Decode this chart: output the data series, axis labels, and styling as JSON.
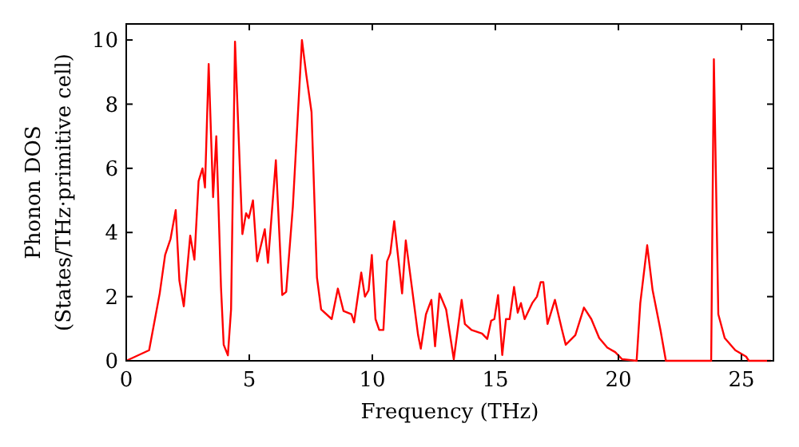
{
  "chart_data": {
    "type": "line",
    "xlabel": "Frequency (THz)",
    "ylabel": "Phonon DOS\n(States/THz·primitive cell)",
    "xlim": [
      0,
      26.3
    ],
    "ylim": [
      0,
      10.5
    ],
    "xticks": [
      0,
      5,
      10,
      15,
      20,
      25
    ],
    "yticks": [
      0,
      2,
      4,
      6,
      8,
      10
    ],
    "grid": false,
    "line_style": "solid",
    "marker": "none",
    "series": [
      {
        "color": "#ff0000",
        "x": [
          0,
          0.93,
          1.36,
          1.58,
          1.8,
          2.01,
          2.16,
          2.34,
          2.6,
          2.77,
          2.94,
          3.1,
          3.2,
          3.35,
          3.53,
          3.66,
          3.85,
          3.96,
          4.13,
          4.26,
          4.42,
          4.72,
          4.87,
          4.98,
          5.15,
          5.32,
          5.63,
          5.76,
          6.08,
          6.34,
          6.5,
          6.77,
          7.14,
          7.32,
          7.53,
          7.75,
          7.92,
          8.35,
          8.6,
          8.83,
          9.15,
          9.26,
          9.55,
          9.7,
          9.85,
          9.98,
          10.13,
          10.28,
          10.45,
          10.6,
          10.73,
          10.89,
          11.21,
          11.36,
          11.64,
          11.86,
          11.97,
          12.18,
          12.4,
          12.55,
          12.73,
          13.0,
          13.31,
          13.63,
          13.76,
          14.03,
          14.46,
          14.67,
          14.83,
          14.96,
          15.11,
          15.28,
          15.43,
          15.58,
          15.76,
          15.91,
          16.04,
          16.19,
          16.5,
          16.69,
          16.84,
          16.95,
          17.12,
          17.42,
          17.71,
          17.86,
          18.25,
          18.6,
          18.9,
          19.22,
          19.55,
          19.87,
          20.15,
          20.74,
          20.89,
          21.17,
          21.39,
          21.71,
          21.93,
          23.77,
          23.88,
          24.06,
          24.32,
          24.75,
          25.19,
          25.3,
          26.2
        ],
        "values": [
          0,
          0.33,
          2.1,
          3.3,
          3.8,
          4.7,
          2.5,
          1.7,
          3.9,
          3.15,
          5.6,
          6.0,
          5.4,
          9.25,
          5.1,
          7.0,
          2.3,
          0.5,
          0.17,
          1.6,
          9.95,
          3.95,
          4.6,
          4.45,
          5.0,
          3.1,
          4.1,
          3.05,
          6.25,
          2.05,
          2.15,
          4.8,
          10.0,
          8.9,
          7.75,
          2.6,
          1.6,
          1.3,
          2.25,
          1.55,
          1.45,
          1.2,
          2.75,
          2.0,
          2.2,
          3.3,
          1.3,
          0.96,
          0.96,
          3.1,
          3.35,
          4.35,
          2.1,
          3.75,
          2.1,
          0.8,
          0.38,
          1.45,
          1.9,
          0.45,
          2.1,
          1.6,
          0.05,
          1.9,
          1.15,
          0.96,
          0.85,
          0.68,
          1.25,
          1.3,
          2.05,
          0.18,
          1.3,
          1.3,
          2.3,
          1.5,
          1.8,
          1.3,
          1.8,
          2.0,
          2.45,
          2.45,
          1.15,
          1.9,
          0.96,
          0.5,
          0.8,
          1.66,
          1.3,
          0.71,
          0.41,
          0.27,
          0.05,
          0,
          1.8,
          3.6,
          2.2,
          0.96,
          0,
          0,
          9.4,
          1.45,
          0.71,
          0.33,
          0.13,
          0,
          0
        ]
      }
    ]
  }
}
